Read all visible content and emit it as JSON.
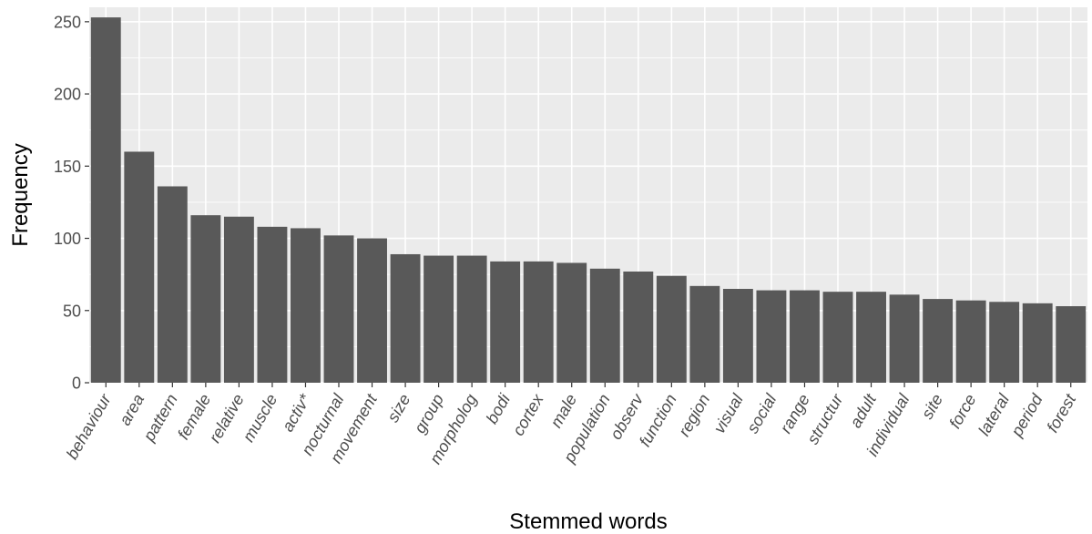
{
  "chart_data": {
    "type": "bar",
    "title": "",
    "xlabel": "Stemmed words",
    "ylabel": "Frequency",
    "ylim": [
      0,
      260
    ],
    "yticks": [
      0,
      50,
      100,
      150,
      200,
      250
    ],
    "grid": true,
    "legend": "none",
    "categories": [
      "behaviour",
      "area",
      "pattern",
      "female",
      "relative",
      "muscle",
      "activ*",
      "nocturnal",
      "movement",
      "size",
      "group",
      "morpholog",
      "bodi",
      "cortex",
      "male",
      "population",
      "observ",
      "function",
      "region",
      "visual",
      "social",
      "range",
      "structur",
      "adult",
      "individual",
      "site",
      "force",
      "lateral",
      "period",
      "forest"
    ],
    "values": [
      253,
      160,
      136,
      116,
      115,
      108,
      107,
      102,
      100,
      89,
      88,
      88,
      84,
      84,
      83,
      79,
      77,
      74,
      67,
      65,
      64,
      64,
      63,
      63,
      61,
      58,
      57,
      56,
      55,
      53
    ]
  },
  "colors": {
    "panel_background": "#ebebeb",
    "grid": "#ffffff",
    "bar_fill": "#595959",
    "tick_text": "#4d4d4d",
    "axis_title": "#000000"
  }
}
